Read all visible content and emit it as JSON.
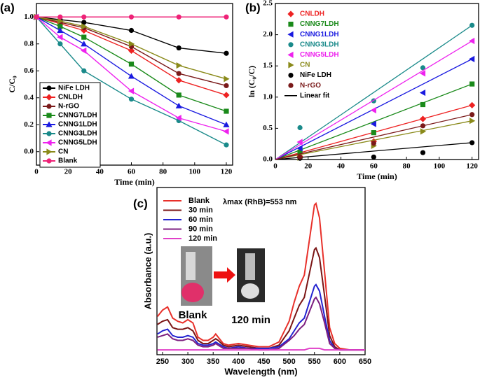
{
  "chart_data": [
    {
      "type": "line",
      "panel_label": "(a)",
      "xlabel": "Time (min)",
      "ylabel": "C/C₀",
      "x": [
        0,
        15,
        30,
        60,
        90,
        120
      ],
      "xlim": [
        0,
        124
      ],
      "xticks": [
        0,
        20,
        40,
        60,
        80,
        100,
        120
      ],
      "ylim": [
        -0.1,
        1.1
      ],
      "yticks": [
        {
          "value": 0,
          "label": "0.0"
        },
        0.2,
        0.4,
        0.6,
        0.8,
        {
          "value": 1,
          "label": "1.0"
        }
      ],
      "legend": "lower left",
      "series": [
        {
          "name": "NiFe LDH",
          "color": "#000000",
          "marker": "circle",
          "values": [
            1,
            0.98,
            0.96,
            0.9,
            0.77,
            0.73
          ]
        },
        {
          "name": "CNLDH",
          "color": "#ee2222",
          "marker": "diamond",
          "values": [
            1,
            0.95,
            0.9,
            0.75,
            0.53,
            0.42
          ]
        },
        {
          "name": "N-rGO",
          "color": "#7a1a1a",
          "marker": "circle",
          "values": [
            1,
            0.96,
            0.92,
            0.78,
            0.58,
            0.49
          ]
        },
        {
          "name": "CNNG7LDH",
          "color": "#1a8a1a",
          "marker": "square",
          "values": [
            1,
            0.93,
            0.85,
            0.65,
            0.42,
            0.3
          ]
        },
        {
          "name": "CNNG1LDH",
          "color": "#1a1ae0",
          "marker": "tri-up",
          "values": [
            1,
            0.9,
            0.8,
            0.56,
            0.34,
            0.2
          ]
        },
        {
          "name": "CNNG3LDH",
          "color": "#1a8a8a",
          "marker": "circle",
          "values": [
            1,
            0.8,
            0.6,
            0.39,
            0.23,
            0.05
          ]
        },
        {
          "name": "CNNG5LDH",
          "color": "#ee22ee",
          "marker": "tri-left",
          "values": [
            1,
            0.85,
            0.75,
            0.45,
            0.25,
            0.15
          ]
        },
        {
          "name": "CN",
          "color": "#8a8a1a",
          "marker": "tri-right",
          "values": [
            1,
            0.97,
            0.93,
            0.8,
            0.64,
            0.54
          ]
        },
        {
          "name": "Blank",
          "color": "#ee2277",
          "marker": "circle",
          "values": [
            1,
            1,
            1,
            1,
            1,
            1
          ]
        }
      ]
    },
    {
      "type": "scatter",
      "panel_label": "(b)",
      "xlabel": "Time (min)",
      "ylabel": "ln (C₀/C)",
      "x": [
        15,
        60,
        90,
        120
      ],
      "fit_x": [
        0,
        120
      ],
      "fit_label": "Linear fit",
      "xlim": [
        0,
        124
      ],
      "xticks": [
        0,
        20,
        40,
        60,
        80,
        100,
        120
      ],
      "ylim": [
        0,
        2.5
      ],
      "yticks": [
        {
          "value": 0,
          "label": "0.0"
        },
        0.5,
        {
          "value": 1,
          "label": "1.0"
        },
        1.5,
        {
          "value": 2,
          "label": "2.0"
        },
        2.5
      ],
      "legend": "upper left",
      "series": [
        {
          "name": "CNLDH",
          "color": "#ee2222",
          "marker": "diamond",
          "values": [
            0.05,
            0.29,
            0.65,
            0.87
          ],
          "fit": [
            0,
            0.87
          ]
        },
        {
          "name": "CNNG7LDH",
          "color": "#1a8a1a",
          "marker": "square",
          "values": [
            0.12,
            0.43,
            0.88,
            1.21
          ],
          "fit": [
            0,
            1.21
          ]
        },
        {
          "name": "CNNG1LDH",
          "color": "#1a1ae0",
          "marker": "tri-left",
          "values": [
            0.18,
            0.57,
            1.07,
            1.61
          ],
          "fit": [
            0,
            1.61
          ]
        },
        {
          "name": "CNNG3LDH",
          "color": "#1a8a8a",
          "marker": "circle",
          "values": [
            0.51,
            0.94,
            1.47,
            2.15
          ],
          "fit": [
            0,
            2.15
          ]
        },
        {
          "name": "CNNG5LDH",
          "color": "#ee22ee",
          "marker": "tri-left",
          "values": [
            0.28,
            0.79,
            1.38,
            1.9
          ],
          "fit": [
            0,
            1.9
          ]
        },
        {
          "name": "CN",
          "color": "#8a8a1a",
          "marker": "tri-right",
          "values": [
            0.03,
            0.22,
            0.45,
            0.62
          ],
          "fit": [
            0,
            0.62
          ]
        },
        {
          "name": "NiFe LDH",
          "color": "#000000",
          "marker": "circle",
          "values": [
            0.02,
            0.04,
            0.11,
            0.27
          ],
          "fit": [
            0,
            0.27
          ]
        },
        {
          "name": "N-rGO",
          "color": "#7a1a1a",
          "marker": "circle",
          "values": [
            0.04,
            0.26,
            0.54,
            0.72
          ],
          "fit": [
            0,
            0.72
          ]
        }
      ]
    },
    {
      "type": "line",
      "panel_label": "(c)",
      "xlabel": "Wavelength (nm)",
      "ylabel": "Absorbance (a.u.)",
      "x": [
        240,
        250,
        260,
        270,
        280,
        290,
        300,
        310,
        320,
        330,
        340,
        350,
        355,
        360,
        370,
        380,
        400,
        420,
        440,
        460,
        480,
        500,
        510,
        520,
        530,
        540,
        550,
        553,
        560,
        570,
        580,
        590,
        600,
        620,
        650
      ],
      "xlim": [
        239,
        650
      ],
      "xticks": [
        250,
        300,
        350,
        400,
        450,
        500,
        550,
        600,
        650
      ],
      "ylim": [
        -0.02,
        1.03
      ],
      "yticks": [],
      "legend": "upper left",
      "annotations": [
        {
          "text": "λmax (RhB)=553 nm"
        },
        {
          "text": "Blank"
        },
        {
          "text": "120 min"
        }
      ],
      "series": [
        {
          "name": "Blank",
          "color": "#e8302a",
          "values": [
            0.22,
            0.26,
            0.28,
            0.21,
            0.19,
            0.18,
            0.2,
            0.18,
            0.09,
            0.07,
            0.07,
            0.09,
            0.11,
            0.09,
            0.05,
            0.04,
            0.05,
            0.04,
            0.03,
            0.03,
            0.06,
            0.19,
            0.31,
            0.41,
            0.48,
            0.7,
            0.92,
            0.93,
            0.84,
            0.5,
            0.15,
            0.05,
            0.02,
            0.01,
            0.01
          ]
        },
        {
          "name": "30 min",
          "color": "#7b1515",
          "values": [
            0.17,
            0.19,
            0.2,
            0.15,
            0.14,
            0.14,
            0.15,
            0.13,
            0.07,
            0.05,
            0.05,
            0.07,
            0.08,
            0.07,
            0.04,
            0.03,
            0.04,
            0.03,
            0.02,
            0.02,
            0.04,
            0.13,
            0.21,
            0.29,
            0.34,
            0.49,
            0.64,
            0.65,
            0.59,
            0.35,
            0.1,
            0.03,
            0.01,
            0.01,
            0.01
          ]
        },
        {
          "name": "60 min",
          "color": "#2323d0",
          "values": [
            0.11,
            0.13,
            0.14,
            0.1,
            0.09,
            0.09,
            0.1,
            0.09,
            0.05,
            0.04,
            0.04,
            0.05,
            0.06,
            0.05,
            0.03,
            0.02,
            0.03,
            0.02,
            0.02,
            0.02,
            0.03,
            0.08,
            0.13,
            0.18,
            0.21,
            0.31,
            0.41,
            0.42,
            0.38,
            0.22,
            0.07,
            0.02,
            0.01,
            0.01,
            0.01
          ]
        },
        {
          "name": "90 min",
          "color": "#7d1f80",
          "values": [
            0.09,
            0.1,
            0.11,
            0.08,
            0.07,
            0.07,
            0.08,
            0.07,
            0.04,
            0.03,
            0.03,
            0.04,
            0.05,
            0.04,
            0.02,
            0.02,
            0.02,
            0.02,
            0.01,
            0.01,
            0.02,
            0.07,
            0.1,
            0.14,
            0.17,
            0.25,
            0.33,
            0.34,
            0.3,
            0.18,
            0.05,
            0.02,
            0.01,
            0.01,
            0.01
          ]
        },
        {
          "name": "120 min",
          "color": "#e040c8",
          "values": [
            0.01,
            0.01,
            0.01,
            0.01,
            0.01,
            0.01,
            0.01,
            0.01,
            0.01,
            0.01,
            0.01,
            0.01,
            0.01,
            0.01,
            0.01,
            0.01,
            0.01,
            0.01,
            0.01,
            0.01,
            0.01,
            0.01,
            0.01,
            0.01,
            0.01,
            0.02,
            0.02,
            0.02,
            0.02,
            0.01,
            0.01,
            0.01,
            0.01,
            0.01,
            0.01
          ]
        }
      ]
    }
  ]
}
